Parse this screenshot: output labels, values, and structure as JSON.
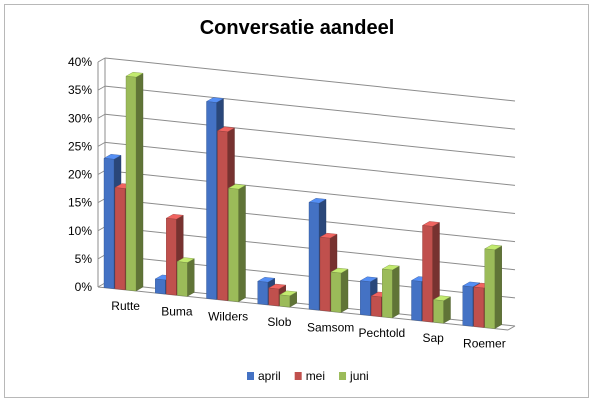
{
  "chart_data": {
    "type": "bar",
    "title": "Conversatie aandeel",
    "categories": [
      "Rutte",
      "Buma",
      "Wilders",
      "Slob",
      "Samsom",
      "Pechtold",
      "Sap",
      "Roemer"
    ],
    "series": [
      {
        "name": "april",
        "color": "#4472c4",
        "values": [
          0.23,
          0.025,
          0.35,
          0.04,
          0.19,
          0.06,
          0.07,
          0.07
        ]
      },
      {
        "name": "mei",
        "color": "#c0504d",
        "values": [
          0.18,
          0.135,
          0.3,
          0.03,
          0.13,
          0.035,
          0.17,
          0.07
        ]
      },
      {
        "name": "juni",
        "color": "#9bbb59",
        "values": [
          0.38,
          0.06,
          0.2,
          0.02,
          0.07,
          0.085,
          0.04,
          0.14
        ]
      }
    ],
    "yticks": [
      "0%",
      "5%",
      "10%",
      "15%",
      "20%",
      "25%",
      "30%",
      "35%",
      "40%"
    ],
    "ylim": [
      0,
      0.4
    ],
    "grid": true,
    "legend": "bottom"
  }
}
